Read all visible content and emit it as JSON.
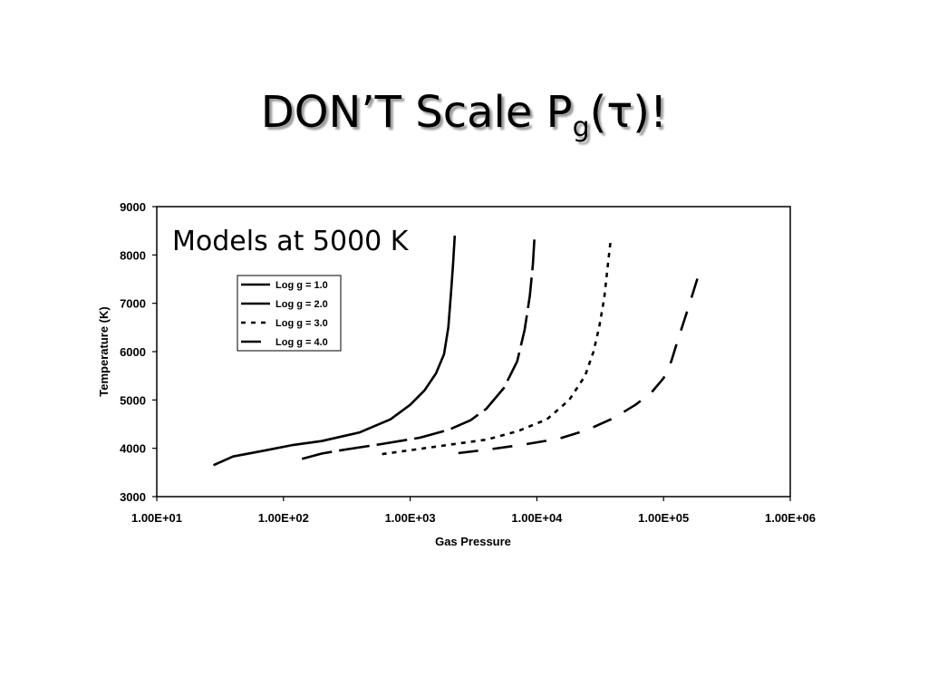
{
  "slide": {
    "title_main": "DON’T Scale P",
    "title_sub": "g",
    "title_tail_open": "(",
    "title_tau": "τ",
    "title_tail_close": ")!"
  },
  "chart_data": {
    "type": "line",
    "xscale": "log",
    "xlim": [
      10,
      1000000
    ],
    "ylim": [
      3000,
      9000
    ],
    "xlabel": "Gas Pressure",
    "ylabel": "Temperature (K)",
    "annotation": "Models at 5000 K",
    "x_tick_values": [
      10,
      100,
      1000,
      10000,
      100000,
      1000000
    ],
    "x_tick_labels": [
      "1.00E+01",
      "1.00E+02",
      "1.00E+03",
      "1.00E+04",
      "1.00E+05",
      "1.00E+06"
    ],
    "y_ticks": [
      3000,
      4000,
      5000,
      6000,
      7000,
      8000,
      9000
    ],
    "grid": false,
    "legend_position": "upper-left",
    "series": [
      {
        "name": "Log g = 1.0",
        "dash": "solid",
        "x": [
          28,
          40,
          70,
          120,
          200,
          400,
          700,
          1000,
          1300,
          1600,
          1850,
          2000,
          2100,
          2180,
          2250
        ],
        "y": [
          3650,
          3830,
          3950,
          4070,
          4150,
          4330,
          4600,
          4900,
          5200,
          5550,
          5950,
          6500,
          7200,
          7800,
          8400
        ]
      },
      {
        "name": "Log g = 2.0",
        "dash": "long-dash",
        "x": [
          140,
          200,
          300,
          600,
          1200,
          2000,
          3000,
          4000,
          5500,
          7000,
          8000,
          8800,
          9300,
          9600
        ],
        "y": [
          3780,
          3890,
          3970,
          4090,
          4220,
          4380,
          4580,
          4820,
          5250,
          5800,
          6450,
          7150,
          7800,
          8400
        ]
      },
      {
        "name": "Log g = 3.0",
        "dash": "short-dash",
        "x": [
          600,
          1000,
          2000,
          4000,
          7000,
          12000,
          18000,
          24000,
          28000,
          31000,
          34000,
          36000,
          38000
        ],
        "y": [
          3880,
          3960,
          4070,
          4180,
          4350,
          4600,
          5000,
          5500,
          6000,
          6500,
          7100,
          7700,
          8250
        ]
      },
      {
        "name": "Log g = 4.0",
        "dash": "dash-gap",
        "x": [
          2400,
          4000,
          8000,
          15000,
          25000,
          40000,
          60000,
          80000,
          100000,
          115000,
          130000,
          150000,
          170000,
          195000
        ],
        "y": [
          3900,
          3970,
          4080,
          4200,
          4380,
          4620,
          4900,
          5150,
          5450,
          5800,
          6250,
          6750,
          7200,
          7700
        ]
      }
    ]
  }
}
